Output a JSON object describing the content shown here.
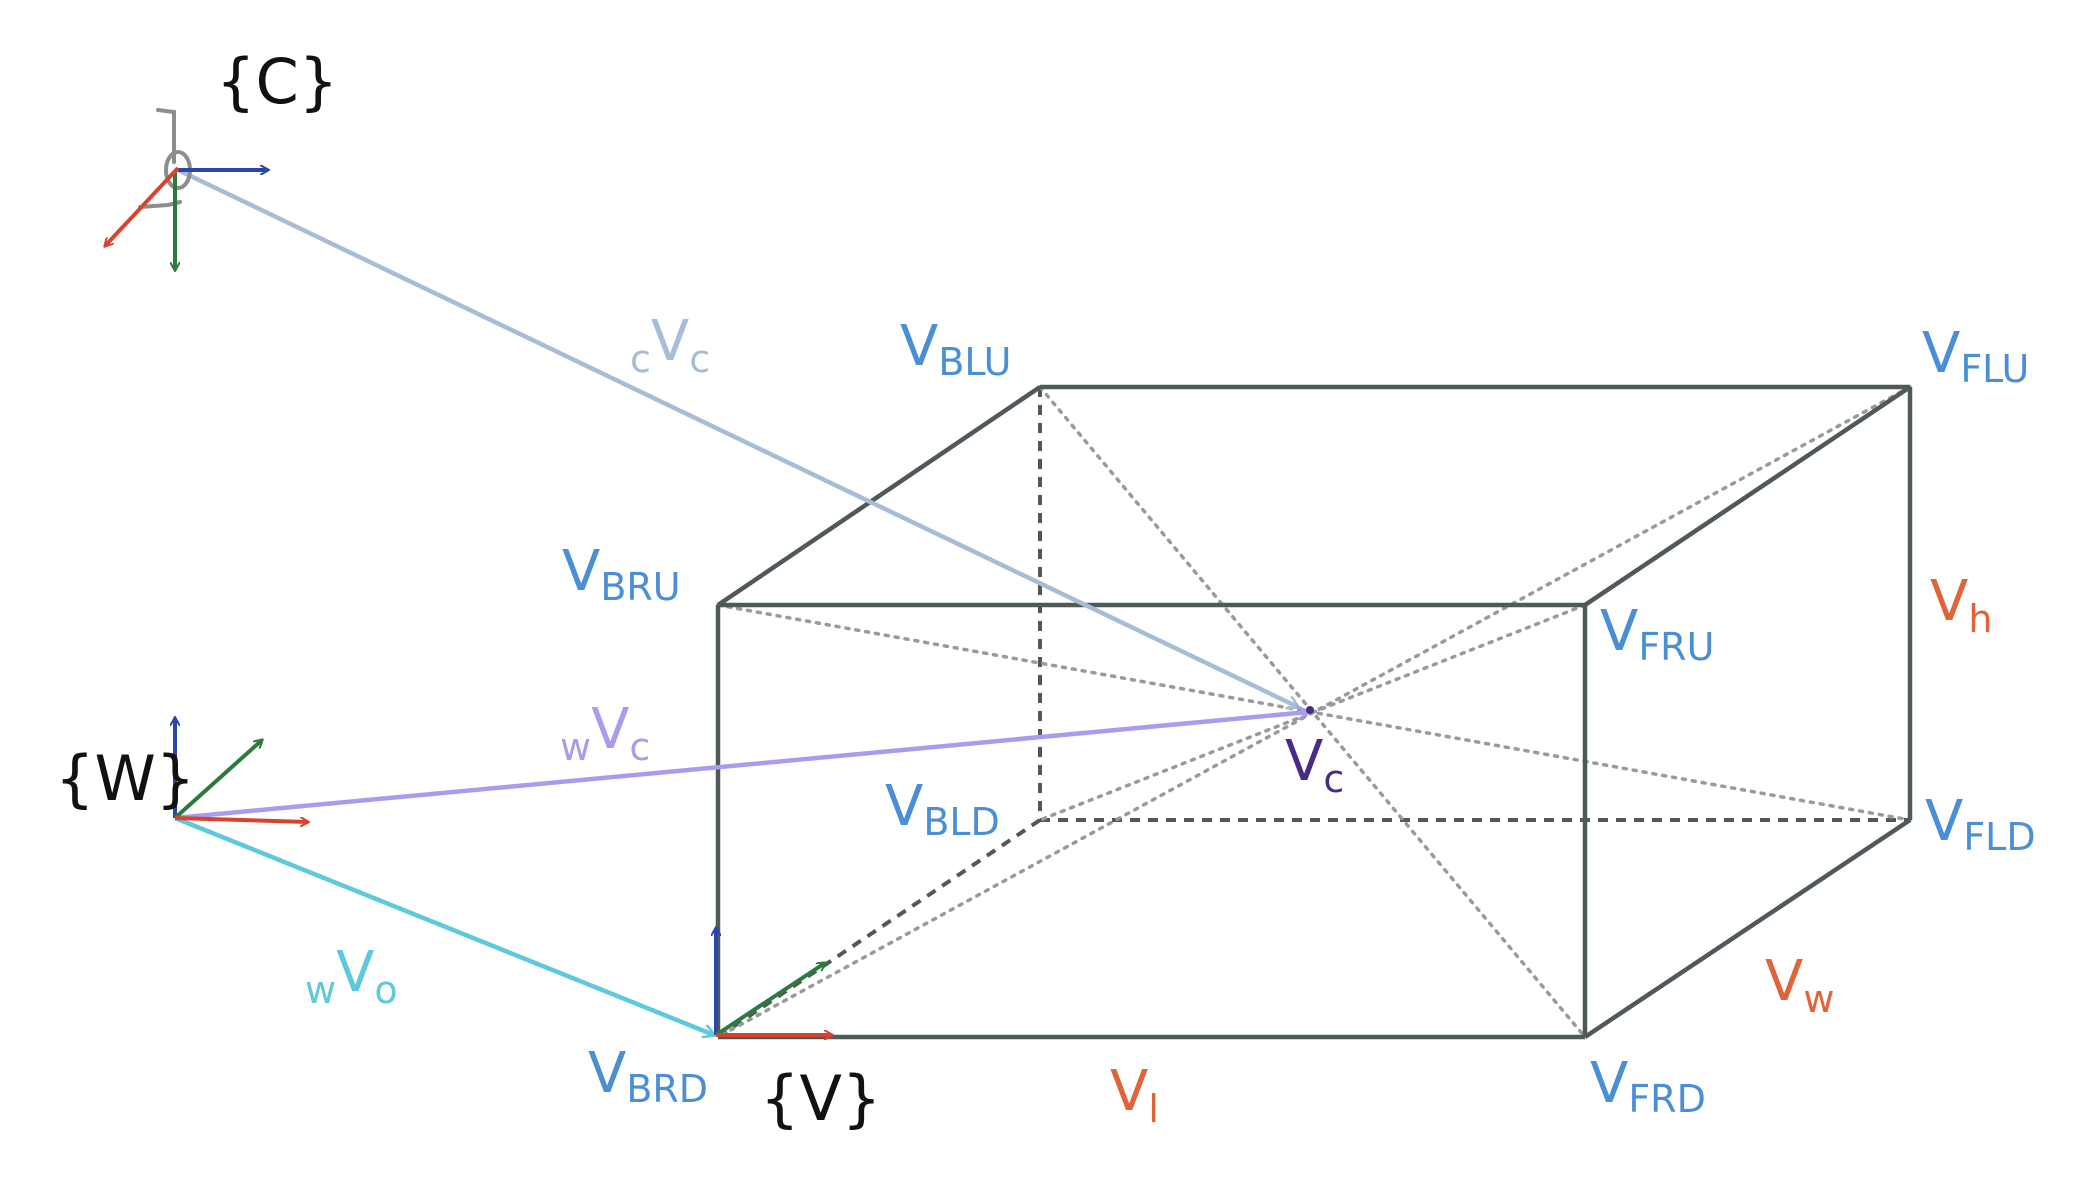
{
  "frames": {
    "camera": "{C}",
    "world": "{W}",
    "vehicle": "{V}"
  },
  "vertices": [
    {
      "id": "BLU",
      "main": "V",
      "sub": "BLU"
    },
    {
      "id": "FLU",
      "main": "V",
      "sub": "FLU"
    },
    {
      "id": "BRU",
      "main": "V",
      "sub": "BRU"
    },
    {
      "id": "FRU",
      "main": "V",
      "sub": "FRU"
    },
    {
      "id": "BLD",
      "main": "V",
      "sub": "BLD"
    },
    {
      "id": "FLD",
      "main": "V",
      "sub": "FLD"
    },
    {
      "id": "BRD",
      "main": "V",
      "sub": "BRD"
    },
    {
      "id": "FRD",
      "main": "V",
      "sub": "FRD"
    }
  ],
  "vectors": {
    "camera_to_center": {
      "pre": "c",
      "main": "V",
      "sub": "c"
    },
    "world_to_center": {
      "pre": "w",
      "main": "V",
      "sub": "c"
    },
    "world_to_origin": {
      "pre": "w",
      "main": "V",
      "sub": "o"
    }
  },
  "center_label": {
    "main": "V",
    "sub": "c"
  },
  "dimensions": {
    "height": {
      "main": "V",
      "sub": "h"
    },
    "width": {
      "main": "V",
      "sub": "w"
    },
    "length": {
      "main": "V",
      "sub": "l"
    }
  },
  "colors": {
    "box_edge": "#4f5a58",
    "diagonal": "#9a9a9a",
    "vertex_label": "#4a8fd6",
    "dimension_label": "#e0643a",
    "center_label": "#4b2a86",
    "vec_camera": "#a7bcd6",
    "vec_world_center": "#a99ced",
    "vec_world_origin": "#5ec8dc",
    "axis_x": "#d8432f",
    "axis_y": "#2e7a3c",
    "axis_z": "#2a46a8",
    "camera_glyph": "#8d8d8d",
    "frame_label": "#111111"
  }
}
